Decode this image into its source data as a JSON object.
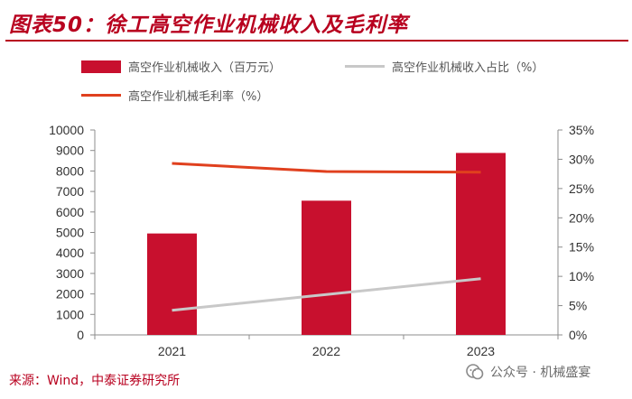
{
  "title": "图表50：徐工高空作业机械收入及毛利率",
  "legend": {
    "revenue": "高空作业机械收入（百万元）",
    "share": "高空作业机械收入占比（%）",
    "margin": "高空作业机械毛利率（%）"
  },
  "source": "来源：Wind，中泰证券研究所",
  "watermark": "公众号 · 机械盛宴",
  "colors": {
    "bar": "#c8102e",
    "share": "#c8c8c8",
    "margin": "#e0401e",
    "title": "#b8001f"
  },
  "chart_data": {
    "type": "bar",
    "categories": [
      "2021",
      "2022",
      "2023"
    ],
    "series": [
      {
        "name": "高空作业机械收入（百万元）",
        "type": "bar",
        "axis": "left",
        "values": [
          4950,
          6550,
          8880
        ]
      },
      {
        "name": "高空作业机械收入占比（%）",
        "type": "line",
        "axis": "right",
        "values": [
          4.2,
          6.9,
          9.6
        ]
      },
      {
        "name": "高空作业机械毛利率（%）",
        "type": "line",
        "axis": "right",
        "values": [
          29.3,
          27.9,
          27.8
        ]
      }
    ],
    "y_left": {
      "min": 0,
      "max": 10000,
      "step": 1000,
      "ticks": [
        "0",
        "1000",
        "2000",
        "3000",
        "4000",
        "5000",
        "6000",
        "7000",
        "8000",
        "9000",
        "10000"
      ]
    },
    "y_right": {
      "min": 0,
      "max": 35,
      "step": 5,
      "ticks": [
        "0%",
        "5%",
        "10%",
        "15%",
        "20%",
        "25%",
        "30%",
        "35%"
      ]
    },
    "grid": false,
    "legend_position": "top"
  }
}
